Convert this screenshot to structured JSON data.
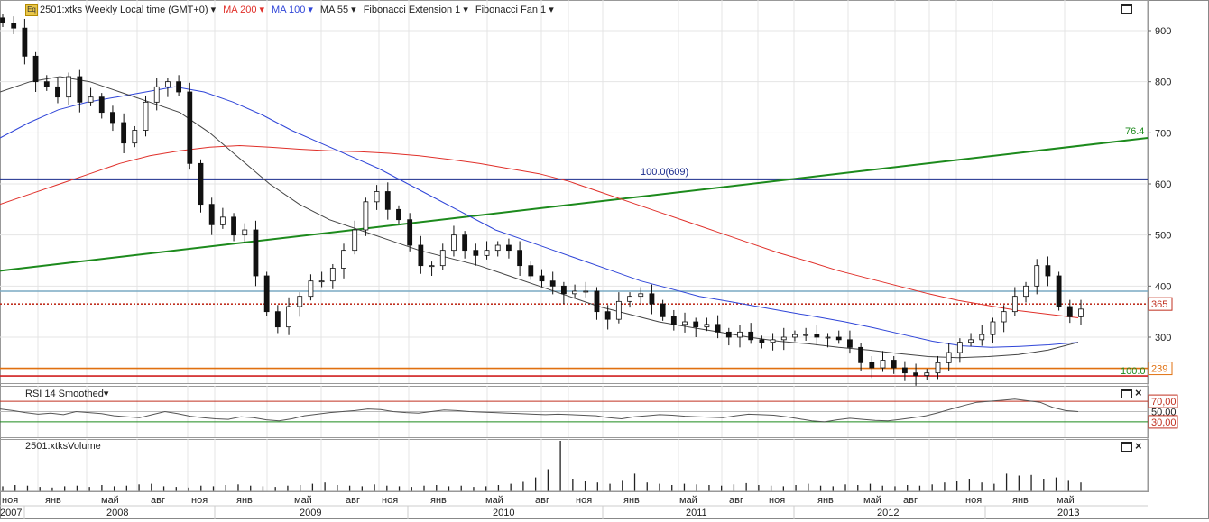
{
  "header": {
    "logo_text": "Eq",
    "symbol": "2501:xtks Weekly Local time (GMT+0)",
    "indicators": [
      {
        "label": "MA 200",
        "color": "#e0302a"
      },
      {
        "label": "MA 100",
        "color": "#2f45d8"
      },
      {
        "label": "MA 55",
        "color": "#333333"
      },
      {
        "label": "Fibonacci Extension 1",
        "color": "#333333"
      },
      {
        "label": "Fibonacci Fan 1",
        "color": "#333333"
      }
    ]
  },
  "rsi": {
    "title": "RSI 14 Smoothed",
    "levels": [
      "70,00",
      "50,00",
      "30,00"
    ]
  },
  "volume": {
    "title": "2501:xtksVolume"
  },
  "chart_data": {
    "type": "candlestick",
    "y_axis": {
      "min": 210,
      "max": 960,
      "ticks": [
        300,
        400,
        500,
        600,
        700,
        800,
        900
      ]
    },
    "x_axis": {
      "months": [
        "ноя",
        "янв",
        "май",
        "авг",
        "ноя",
        "янв",
        "май",
        "авг",
        "ноя",
        "янв",
        "май",
        "авг",
        "ноя",
        "янв",
        "май",
        "авг",
        "ноя",
        "янв",
        "май",
        "авг",
        "ноя",
        "янв",
        "май"
      ],
      "years": [
        "2007",
        "2008",
        "2009",
        "2010",
        "2011",
        "2012",
        "2013"
      ]
    },
    "close_series": [
      915,
      905,
      850,
      800,
      790,
      770,
      810,
      760,
      770,
      740,
      720,
      680,
      705,
      760,
      790,
      800,
      780,
      640,
      560,
      520,
      535,
      500,
      510,
      420,
      350,
      320,
      360,
      380,
      410,
      410,
      435,
      470,
      510,
      565,
      585,
      550,
      530,
      480,
      440,
      440,
      470,
      500,
      470,
      460,
      470,
      480,
      470,
      440,
      420,
      410,
      400,
      385,
      390,
      390,
      350,
      335,
      370,
      380,
      385,
      365,
      340,
      325,
      330,
      320,
      325,
      310,
      300,
      310,
      295,
      290,
      295,
      300,
      305,
      305,
      300,
      300,
      295,
      280,
      250,
      240,
      255,
      240,
      230,
      225,
      230,
      250,
      270,
      290,
      295,
      305,
      330,
      350,
      380,
      400,
      440,
      420,
      360,
      340,
      355
    ],
    "moving_averages": [
      {
        "name": "MA 200",
        "color": "#e0302a",
        "values": [
          560,
          580,
          600,
          620,
          640,
          655,
          665,
          672,
          675,
          672,
          668,
          665,
          663,
          660,
          655,
          648,
          640,
          630,
          620,
          605,
          585,
          565,
          545,
          525,
          505,
          485,
          465,
          448,
          430,
          415,
          400,
          385,
          372,
          362,
          352,
          345,
          338
        ]
      },
      {
        "name": "MA 100",
        "color": "#2f45d8",
        "values": [
          690,
          720,
          745,
          760,
          770,
          780,
          790,
          780,
          760,
          735,
          705,
          680,
          655,
          630,
          600,
          570,
          540,
          510,
          490,
          470,
          450,
          430,
          410,
          395,
          380,
          370,
          360,
          350,
          340,
          330,
          318,
          305,
          292,
          283,
          280,
          282,
          285,
          290
        ]
      },
      {
        "name": "MA 55",
        "color": "#444444",
        "values": [
          780,
          800,
          810,
          800,
          780,
          760,
          740,
          700,
          650,
          600,
          560,
          530,
          510,
          490,
          470,
          455,
          440,
          420,
          400,
          380,
          360,
          345,
          330,
          320,
          310,
          300,
          292,
          287,
          280,
          275,
          268,
          262,
          260,
          262,
          266,
          275,
          290
        ]
      }
    ],
    "horizontal_levels": [
      {
        "label": "100.0(609)",
        "value": 609,
        "color": "#1a2b8c"
      },
      {
        "label": "365",
        "value": 365,
        "color": "#c03020"
      },
      {
        "label": "239",
        "value": 239,
        "color": "#e07010"
      },
      {
        "label": "100.0",
        "value": 224,
        "color": "#d02020"
      },
      {
        "label": "",
        "value": 390,
        "color": "#7aaac4"
      }
    ],
    "fan_line": {
      "label": "76.4",
      "from": 430,
      "to": 690,
      "color": "#1c8a1c"
    },
    "rsi_values": [
      55,
      52,
      48,
      45,
      47,
      44,
      50,
      48,
      46,
      42,
      40,
      38,
      44,
      50,
      46,
      41,
      38,
      36,
      35,
      40,
      38,
      34,
      32,
      36,
      42,
      45,
      48,
      50,
      52,
      55,
      54,
      50,
      48,
      47,
      50,
      53,
      52,
      50,
      49,
      48,
      47,
      46,
      45,
      44,
      45,
      44,
      43,
      42,
      38,
      36,
      40,
      42,
      44,
      43,
      41,
      40,
      39,
      38,
      42,
      45,
      44,
      43,
      40,
      36,
      32,
      30,
      34,
      37,
      35,
      33,
      32,
      35,
      38,
      42,
      48,
      55,
      62,
      68,
      70,
      72,
      74,
      71,
      68,
      58,
      52,
      50
    ],
    "volume_values": [
      8,
      10,
      9,
      7,
      6,
      8,
      9,
      7,
      10,
      8,
      9,
      11,
      12,
      8,
      7,
      6,
      9,
      8,
      10,
      11,
      9,
      8,
      7,
      9,
      10,
      12,
      14,
      10,
      9,
      8,
      11,
      9,
      8,
      7,
      9,
      10,
      8,
      9,
      7,
      8,
      10,
      12,
      15,
      22,
      35,
      80,
      20,
      16,
      14,
      12,
      18,
      28,
      14,
      12,
      10,
      12,
      11,
      10,
      9,
      11,
      13,
      10,
      9,
      8,
      10,
      12,
      9,
      8,
      11,
      10,
      12,
      9,
      8,
      10,
      9,
      11,
      14,
      16,
      20,
      14,
      12,
      28,
      25,
      26,
      20,
      22,
      18,
      14
    ]
  }
}
